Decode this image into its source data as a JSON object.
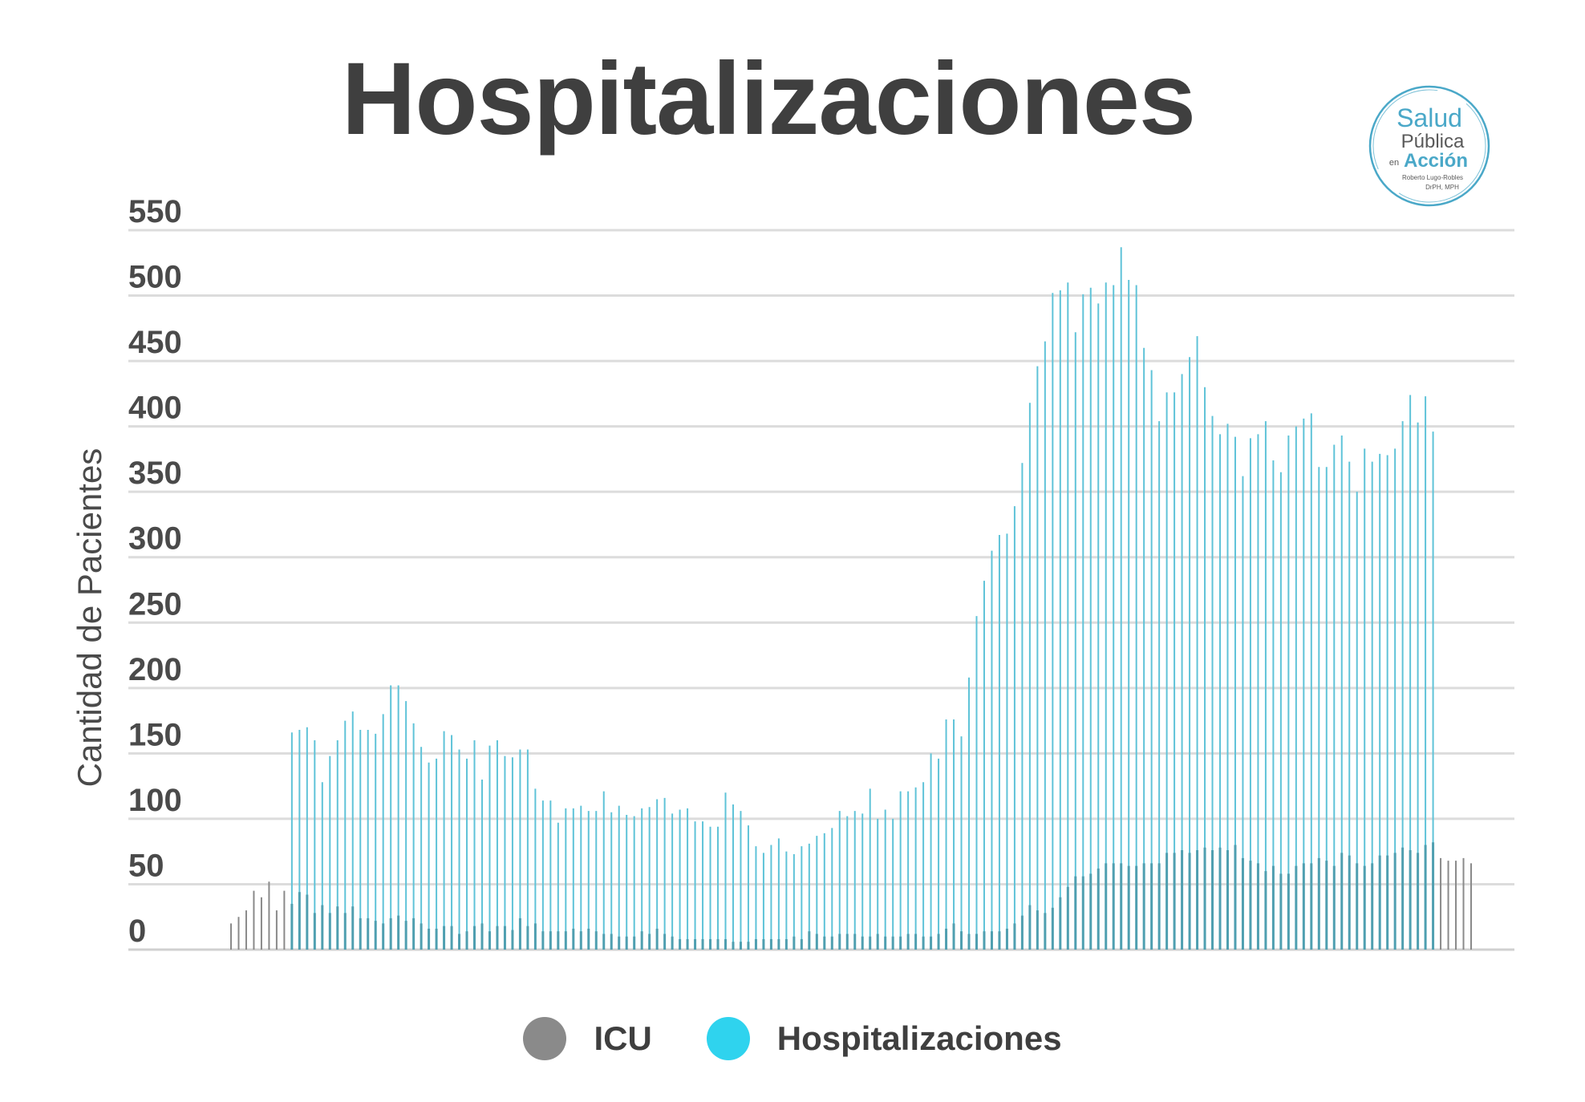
{
  "chart_data": {
    "type": "bar",
    "title": "Hospitalizaciones",
    "ylabel": "Cantidad de Pacientes",
    "xlabel": "",
    "ylim": [
      0,
      550
    ],
    "yticks": [
      0,
      50,
      100,
      150,
      200,
      250,
      300,
      350,
      400,
      450,
      500,
      550
    ],
    "grid": true,
    "legend_position": "bottom-center",
    "series": [
      {
        "name": "ICU",
        "color": "#8a8a8a",
        "values": [
          20,
          25,
          30,
          45,
          40,
          52,
          30,
          45,
          35,
          44,
          42,
          28,
          34,
          28,
          33,
          28,
          33,
          24,
          24,
          22,
          20,
          24,
          26,
          22,
          24,
          20,
          16,
          16,
          18,
          18,
          12,
          14,
          18,
          20,
          14,
          18,
          18,
          15,
          24,
          18,
          20,
          14,
          14,
          14,
          14,
          16,
          14,
          16,
          14,
          12,
          12,
          10,
          10,
          10,
          14,
          12,
          16,
          12,
          10,
          8,
          8,
          8,
          8,
          8,
          8,
          8,
          6,
          6,
          6,
          8,
          8,
          8,
          8,
          8,
          10,
          8,
          14,
          12,
          10,
          10,
          12,
          12,
          12,
          10,
          10,
          12,
          10,
          10,
          10,
          12,
          12,
          10,
          10,
          12,
          16,
          20,
          14,
          12,
          12,
          14,
          14,
          14,
          16,
          20,
          26,
          34,
          30,
          28,
          32,
          40,
          48,
          56,
          56,
          58,
          62,
          66,
          66,
          66,
          64,
          64,
          66,
          66,
          66,
          74,
          74,
          76,
          74,
          76,
          78,
          76,
          78,
          76,
          80,
          70,
          68,
          66,
          60,
          64,
          58,
          58,
          64,
          66,
          66,
          70,
          68,
          64,
          74,
          72,
          66,
          64,
          66,
          72,
          72,
          74,
          78,
          76,
          74,
          80,
          82,
          70,
          68,
          68,
          70,
          66
        ]
      },
      {
        "name": "Hospitalizaciones",
        "color": "#5fc3d8",
        "values": [
          null,
          null,
          null,
          null,
          null,
          null,
          null,
          null,
          166,
          168,
          170,
          160,
          128,
          148,
          160,
          175,
          182,
          168,
          168,
          165,
          180,
          202,
          202,
          190,
          173,
          155,
          143,
          146,
          167,
          164,
          153,
          146,
          160,
          130,
          156,
          160,
          148,
          147,
          153,
          153,
          123,
          114,
          114,
          97,
          108,
          108,
          110,
          106,
          106,
          121,
          105,
          110,
          103,
          102,
          108,
          109,
          115,
          116,
          104,
          107,
          108,
          98,
          98,
          94,
          94,
          120,
          111,
          106,
          95,
          79,
          74,
          80,
          85,
          75,
          73,
          79,
          81,
          87,
          89,
          93,
          106,
          102,
          106,
          104,
          123,
          100,
          107,
          100,
          121,
          121,
          124,
          128,
          150,
          146,
          176,
          176,
          163,
          208,
          255,
          282,
          305,
          317,
          318,
          339,
          372,
          418,
          446,
          465,
          502,
          504,
          510,
          472,
          501,
          506,
          494,
          510,
          508,
          537,
          512,
          508,
          460,
          443,
          404,
          426,
          426,
          440,
          453,
          469,
          430,
          408,
          394,
          402,
          392,
          362,
          391,
          394,
          404,
          374,
          365,
          393,
          400,
          406,
          410,
          369,
          369,
          386,
          393,
          373,
          350,
          383,
          373,
          379,
          378,
          383,
          404,
          424,
          403,
          423,
          396
        ]
      }
    ]
  },
  "legend": {
    "items": [
      {
        "label": "ICU",
        "color": "#8a8a8a"
      },
      {
        "label": "Hospitalizaciones",
        "color": "#2fd3ee"
      }
    ]
  },
  "logo": {
    "line1": "Salud",
    "line2": "Pública",
    "line3_small": "en",
    "line3": "Acción",
    "author": "Roberto Lugo-Robles",
    "credentials": "DrPH, MPH",
    "color": "#4aa8c8"
  }
}
